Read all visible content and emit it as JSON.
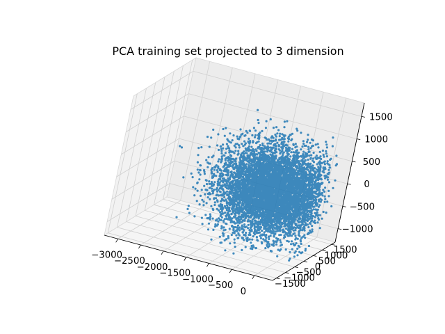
{
  "chart_data": {
    "type": "scatter",
    "projection": "3d",
    "title": "PCA training set projected to 3 dimension",
    "xlabel": "",
    "ylabel": "",
    "zlabel": "",
    "x_ticks": [
      "−3000",
      "−2500",
      "−2000",
      "−1500",
      "−1000",
      "−500",
      "0"
    ],
    "y_ticks": [
      "−1500",
      "−1000",
      "−500",
      "0",
      "500",
      "1000",
      "1500"
    ],
    "z_ticks": [
      "−1000",
      "−500",
      "0",
      "500",
      "1000",
      "1500"
    ],
    "xlim": [
      -3300,
      400
    ],
    "ylim": [
      -1700,
      1700
    ],
    "zlim": [
      -1300,
      1800
    ],
    "grid": true,
    "marker_color": "#1f77b4",
    "pane_color": "#f2f2f2",
    "grid_color": "#d0d0d0",
    "cloud": {
      "point_count": 26000,
      "x_center": -600,
      "y_center": 0,
      "z_center": 0,
      "x_range_approx": [
        -2500,
        300
      ],
      "y_range_approx": [
        -1300,
        1300
      ],
      "z_range_approx": [
        -1150,
        1300
      ]
    }
  }
}
